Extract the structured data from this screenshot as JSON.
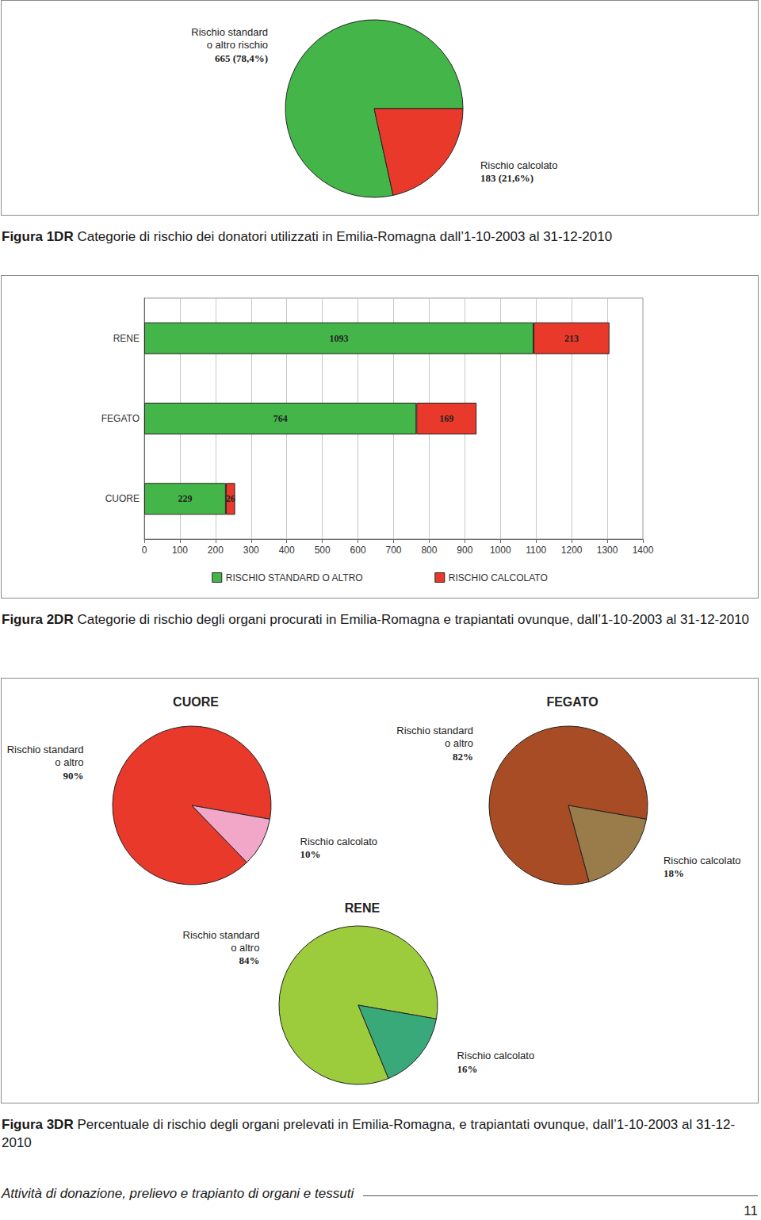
{
  "chart_data": [
    {
      "type": "pie",
      "categories": [
        "Rischio standard\no altro rischio",
        "Rischio calcolato"
      ],
      "values": [
        665,
        183
      ],
      "value_labels": [
        "665 (78,4%)",
        "183 (21,6%)"
      ],
      "colors": [
        "#44b649",
        "#e8392a"
      ],
      "data_labels": true
    },
    {
      "type": "bar",
      "orientation": "horizontal",
      "stacked": true,
      "categories": [
        "RENE",
        "FEGATO",
        "CUORE"
      ],
      "series": [
        {
          "name": "RISCHIO STANDARD O ALTRO",
          "color": "#44b649",
          "values": [
            1093,
            764,
            229
          ]
        },
        {
          "name": "RISCHIO CALCOLATO",
          "color": "#e8392a",
          "values": [
            213,
            169,
            26
          ]
        }
      ],
      "xlim": [
        0,
        1400
      ],
      "xticks": [
        0,
        100,
        200,
        300,
        400,
        500,
        600,
        700,
        800,
        900,
        1000,
        1100,
        1200,
        1300,
        1400
      ],
      "grid": true,
      "data_labels": true,
      "legend": "bottom"
    },
    {
      "type": "pie",
      "title": "CUORE",
      "categories": [
        "Rischio standard\no altro",
        "Rischio calcolato"
      ],
      "values": [
        90,
        10
      ],
      "value_labels": [
        "90%",
        "10%"
      ],
      "colors": [
        "#e8392a",
        "#f2a6c8"
      ],
      "data_labels": true
    },
    {
      "type": "pie",
      "title": "FEGATO",
      "categories": [
        "Rischio standard\no altro",
        "Rischio calcolato"
      ],
      "values": [
        82,
        18
      ],
      "value_labels": [
        "82%",
        "18%"
      ],
      "colors": [
        "#a84c25",
        "#9a7b4a"
      ],
      "data_labels": true
    },
    {
      "type": "pie",
      "title": "RENE",
      "categories": [
        "Rischio standard\no altro",
        "Rischio calcolato"
      ],
      "values": [
        84,
        16
      ],
      "value_labels": [
        "84%",
        "16%"
      ],
      "colors": [
        "#9ccb3b",
        "#3aa97a"
      ],
      "data_labels": true
    }
  ],
  "captions": [
    {
      "label": "Figura 1DR",
      "text": "Categorie di rischio dei donatori utilizzati in Emilia-Romagna dall’1-10-2003 al 31-12-2010"
    },
    {
      "label": "Figura 2DR",
      "text": "Categorie di rischio degli organi procurati in Emilia-Romagna e trapiantati ovunque, dall’1-10-2003 al 31-12-2010"
    },
    {
      "label": "Figura 3DR",
      "text": "Percentuale di rischio degli organi prelevati in Emilia-Romagna, e trapiantati ovunque, dall’1-10-2003 al 31-12-2010"
    }
  ],
  "footer": {
    "text": "Attività di donazione, prelievo e trapianto di organi e tessuti",
    "page": "11"
  }
}
